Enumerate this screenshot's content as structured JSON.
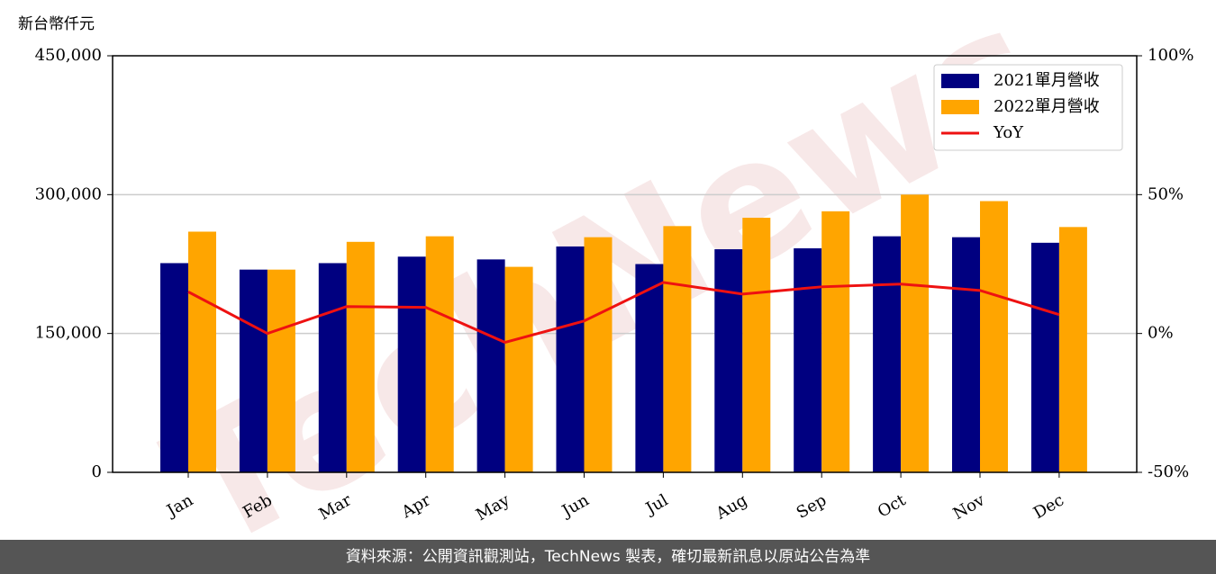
{
  "chart_data": {
    "type": "bar",
    "y_unit_label": "新台幣仟元",
    "categories": [
      "Jan",
      "Feb",
      "Mar",
      "Apr",
      "May",
      "Jun",
      "Jul",
      "Aug",
      "Sep",
      "Oct",
      "Nov",
      "Dec"
    ],
    "series": [
      {
        "name": "2021單月營收",
        "color": "#000080",
        "values": [
          226000,
          219000,
          226000,
          233000,
          230000,
          244000,
          225000,
          241000,
          242000,
          255000,
          254000,
          248000
        ]
      },
      {
        "name": "2022單月營收",
        "color": "#ffa500",
        "values": [
          260000,
          219000,
          249000,
          255000,
          222000,
          254000,
          266000,
          275000,
          282000,
          300000,
          293000,
          265000
        ]
      },
      {
        "name": "YoY",
        "color": "#ee1111",
        "type": "line",
        "axis": "y2",
        "values": [
          15,
          0,
          9.7,
          9.4,
          -3.2,
          4.5,
          18.4,
          14.2,
          16.8,
          17.8,
          15.5,
          6.8
        ]
      }
    ],
    "ylim": [
      0,
      450000
    ],
    "yticks": [
      0,
      {
        "value": 150000,
        "label": "150,000"
      },
      {
        "value": 300000,
        "label": "300,000"
      },
      {
        "value": 450000,
        "label": "450,000"
      }
    ],
    "y2lim": [
      -50,
      100
    ],
    "y2ticks": [
      {
        "value": -50,
        "label": "-50%"
      },
      {
        "value": 0,
        "label": "0%"
      },
      {
        "value": 50,
        "label": "50%"
      },
      {
        "value": 100,
        "label": "100%"
      }
    ],
    "grid": true,
    "legend": "upper right",
    "watermark": "TechNews",
    "footer": "資料來源：公開資訊觀測站，TechNews 製表，確切最新訊息以原站公告為準"
  }
}
